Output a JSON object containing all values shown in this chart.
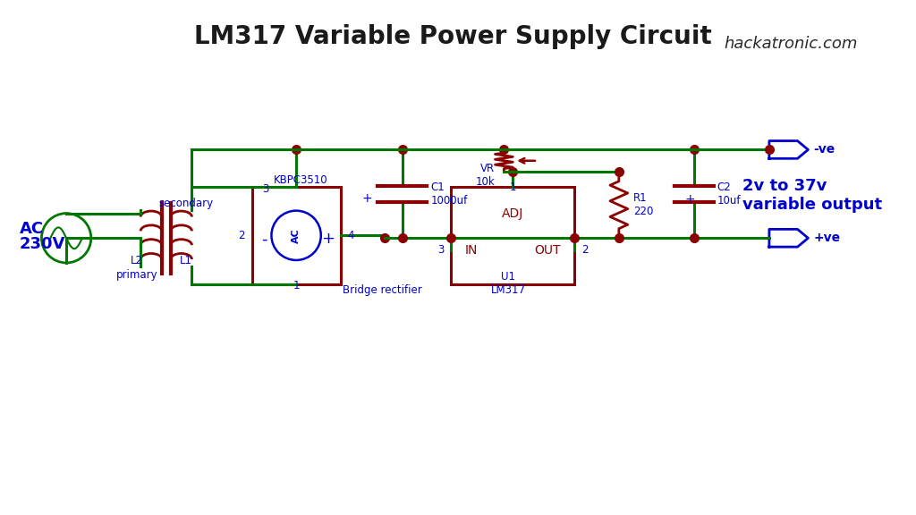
{
  "title": "LM317 Variable Power Supply Circuit",
  "title_fontsize": 20,
  "title_color": "#1a1a1a",
  "bg_color": "#ffffff",
  "wire_color": "#007700",
  "component_color": "#8B0000",
  "label_color": "#0000CC",
  "dot_color": "#8B0000",
  "hackatronic_text": "hackatronic.com",
  "source_label_1": "230V",
  "source_label_2": "AC",
  "primary_label": "primary",
  "secondary_label": "secondary",
  "l1_label": "L1",
  "l2_label": "L2",
  "bridge_label": "KBPC3510",
  "bridge_rectifier_label": "Bridge rectifier",
  "c1_label": "C1\n1000uf",
  "c2_label": "C2\n10uf",
  "r1_label": "R1\n220",
  "vr_label": "VR\n10k",
  "u1_label": "U1\nLM317",
  "lm317_in": "IN",
  "lm317_out": "OUT",
  "lm317_adj": "ADJ",
  "output_label": "2v to 37v\nvariable output",
  "plus_label": "+ve",
  "minus_label": "-ve",
  "pin1": "1",
  "pin2": "2",
  "pin3": "3",
  "pin4": "4"
}
